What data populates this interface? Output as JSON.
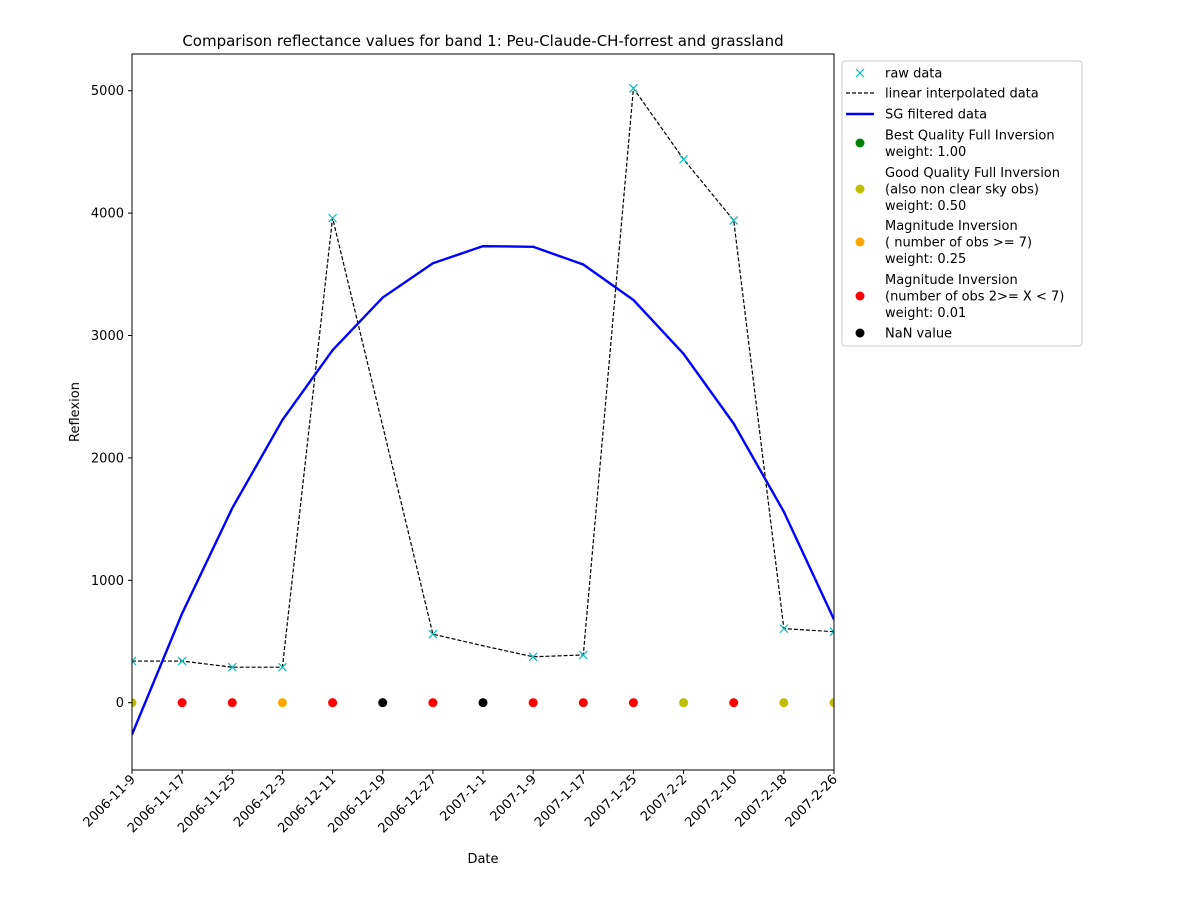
{
  "chart_data": {
    "type": "line",
    "title": "Comparison reflectance values for band 1: Peu-Claude-CH-forrest and grassland",
    "xlabel": "Date",
    "ylabel": "Reflexion",
    "x": [
      "2006-11-9",
      "2006-11-17",
      "2006-11-25",
      "2006-12-3",
      "2006-12-11",
      "2006-12-19",
      "2006-12-27",
      "2007-1-1",
      "2007-1-9",
      "2007-1-17",
      "2007-1-25",
      "2007-2-2",
      "2007-2-10",
      "2007-2-18",
      "2007-2-26"
    ],
    "x_tick_labels": [
      "2006-11-9",
      "2006-11-17",
      "2006-11-25",
      "2006-12-3",
      "2006-12-11",
      "2006-12-19",
      "2006-12-27",
      "2007-1-1",
      "2007-1-9",
      "2007-1-17",
      "2007-1-25",
      "2007-2-2",
      "2007-2-10",
      "2007-2-18",
      "2007-2-26"
    ],
    "ylim": [
      -550,
      5300
    ],
    "yticks": [
      0,
      1000,
      2000,
      3000,
      4000,
      5000
    ],
    "grid": false,
    "legend_position": "outside-right-top",
    "series": [
      {
        "name": "raw data",
        "kind": "markers",
        "marker": "x",
        "color": "#00bfbf",
        "values": [
          340,
          340,
          290,
          290,
          3960,
          null,
          560,
          null,
          375,
          390,
          5020,
          4440,
          3940,
          605,
          580
        ]
      },
      {
        "name": "linear interpolated data",
        "kind": "line",
        "style": "dashed",
        "color": "#000000",
        "values": [
          340,
          340,
          290,
          290,
          3960,
          2260,
          560,
          465,
          375,
          390,
          5020,
          4440,
          3940,
          605,
          580
        ]
      },
      {
        "name": "SG filtered data",
        "kind": "line",
        "style": "solid",
        "color": "#0000ff",
        "values": [
          -260,
          730,
          1590,
          2310,
          2880,
          3310,
          3590,
          3730,
          3725,
          3580,
          3290,
          2850,
          2280,
          1560,
          680
        ]
      }
    ],
    "quality_points": {
      "y": 0,
      "classes": [
        "good",
        "red",
        "red",
        "orange",
        "red",
        "nan",
        "red",
        "nan",
        "red",
        "red",
        "red",
        "good",
        "red",
        "good",
        "good"
      ]
    },
    "legend": [
      {
        "key": "raw",
        "label": [
          "raw data"
        ]
      },
      {
        "key": "linear",
        "label": [
          "linear interpolated data"
        ]
      },
      {
        "key": "sg",
        "label": [
          "SG filtered data"
        ]
      },
      {
        "key": "best",
        "label": [
          "Best Quality Full Inversion",
          "weight: 1.00"
        ]
      },
      {
        "key": "good",
        "label": [
          "Good Quality Full Inversion",
          "(also non clear sky obs)",
          "weight: 0.50"
        ]
      },
      {
        "key": "orange",
        "label": [
          "Magnitude Inversion",
          "( number of obs >= 7)",
          "weight: 0.25"
        ]
      },
      {
        "key": "red",
        "label": [
          "Magnitude Inversion",
          "(number of obs 2>= X < 7)",
          "weight: 0.01"
        ]
      },
      {
        "key": "nan",
        "label": [
          "NaN value"
        ]
      }
    ],
    "class_colors": {
      "best": "#008000",
      "good": "#bfbf00",
      "orange": "#ffa500",
      "red": "#ff0000",
      "nan": "#000000"
    }
  }
}
